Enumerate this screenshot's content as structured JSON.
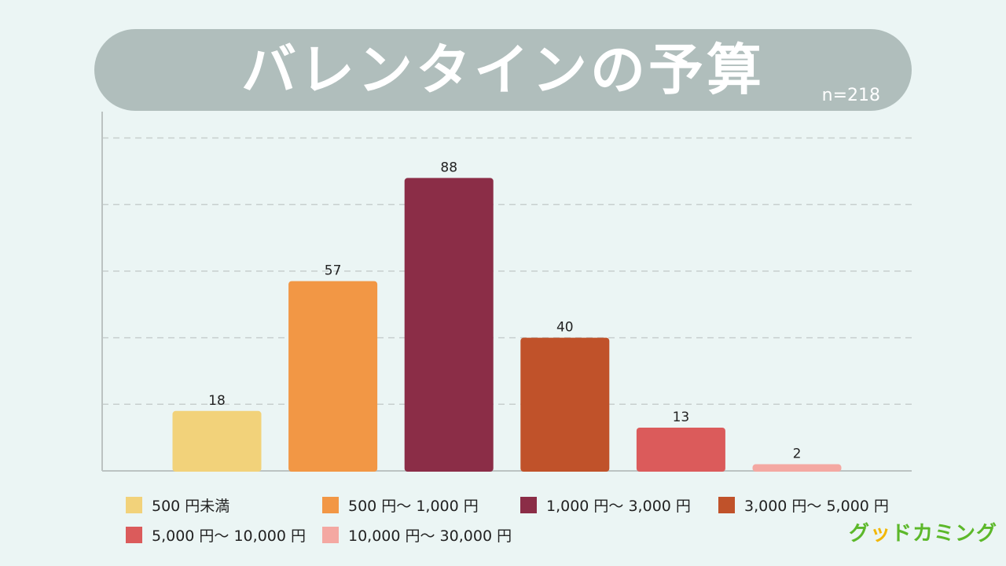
{
  "chart_data": {
    "type": "bar",
    "title": "バレンタインの予算",
    "subtitle": "n=218",
    "categories": [
      "500 円未満",
      "500 円〜 1,000 円",
      "1,000 円〜 3,000 円",
      "3,000 円〜 5,000 円",
      "5,000 円〜 10,000 円",
      "10,000 円〜 30,000 円"
    ],
    "values": [
      18,
      57,
      88,
      40,
      13,
      2
    ],
    "colors": [
      "#f2d27a",
      "#f29745",
      "#8b2d47",
      "#c0522a",
      "#db5b5b",
      "#f4a8a2"
    ],
    "ylim": [
      0,
      100
    ],
    "grid": true,
    "legend": "bottom"
  },
  "logo": {
    "part1": "グ",
    "part2": "ッ",
    "part3": "ドカミング"
  }
}
